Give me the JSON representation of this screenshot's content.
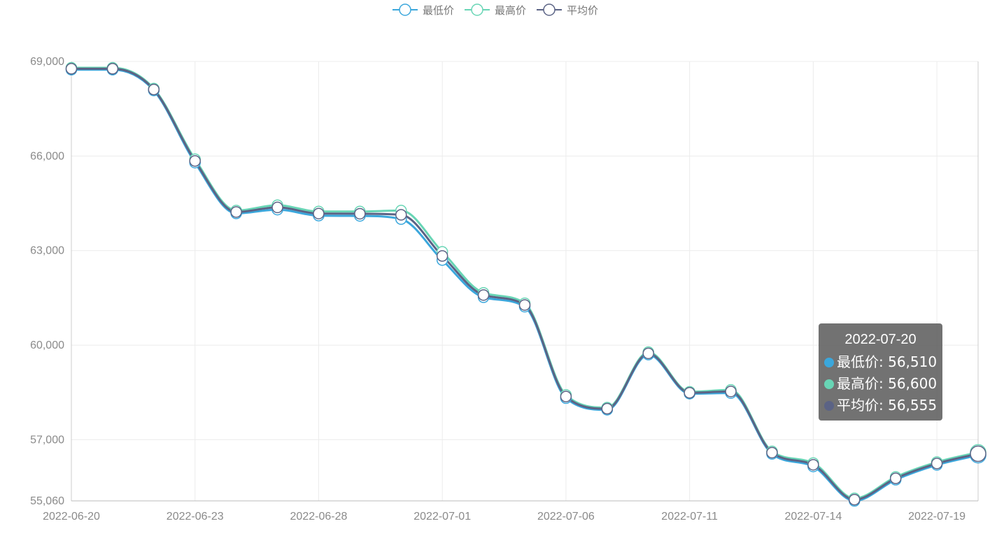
{
  "chart_data": {
    "type": "line",
    "smooth": true,
    "title": "",
    "xlabel": "",
    "ylabel": "",
    "ylim": [
      55060,
      69000
    ],
    "y_ticks": [
      {
        "value": 69000,
        "label": "69,000"
      },
      {
        "value": 66000,
        "label": "66,000"
      },
      {
        "value": 63000,
        "label": "63,000"
      },
      {
        "value": 60000,
        "label": "60,000"
      },
      {
        "value": 57000,
        "label": "57,000"
      },
      {
        "value": 55060,
        "label": "55,060"
      }
    ],
    "x_tick_labels": [
      "2022-06-20",
      "2022-06-23",
      "2022-06-28",
      "2022-07-01",
      "2022-07-06",
      "2022-07-11",
      "2022-07-14",
      "2022-07-19"
    ],
    "grid": true,
    "legend": "top-center",
    "categories": [
      "2022-06-20",
      "2022-06-21",
      "2022-06-22",
      "2022-06-23",
      "2022-06-24",
      "2022-06-27",
      "2022-06-28",
      "2022-06-29",
      "2022-06-30",
      "2022-07-01",
      "2022-07-04",
      "2022-07-05",
      "2022-07-06",
      "2022-07-07",
      "2022-07-08",
      "2022-07-11",
      "2022-07-12",
      "2022-07-13",
      "2022-07-14",
      "2022-07-15",
      "2022-07-18",
      "2022-07-19",
      "2022-07-20"
    ],
    "series": [
      {
        "name": "最低价",
        "color": "#3ba7dc",
        "values": [
          68740,
          68740,
          68080,
          65790,
          64180,
          64300,
          64110,
          64100,
          64000,
          62700,
          61520,
          61220,
          58320,
          57950,
          59700,
          58460,
          58480,
          56550,
          56150,
          55060,
          55730,
          56200,
          56510
        ]
      },
      {
        "name": "最高价",
        "color": "#68d5b5",
        "values": [
          68800,
          68800,
          68140,
          65900,
          64270,
          64440,
          64240,
          64240,
          64270,
          62960,
          61660,
          61330,
          58420,
          58020,
          59780,
          58520,
          58580,
          56630,
          56260,
          55140,
          55820,
          56290,
          56600
        ]
      },
      {
        "name": "平均价",
        "color": "#5b6385",
        "values": [
          68770,
          68770,
          68110,
          65845,
          64225,
          64370,
          64175,
          64170,
          64135,
          62830,
          61590,
          61275,
          58370,
          57985,
          59740,
          58490,
          58530,
          56590,
          56205,
          55100,
          55775,
          56245,
          56555
        ]
      }
    ],
    "tooltip": {
      "title": "2022-07-20",
      "rows": [
        {
          "label": "最低价: 56,510",
          "color": "#3ba7dc"
        },
        {
          "label": "最高价: 56,600",
          "color": "#68d5b5"
        },
        {
          "label": "平均价: 56,555",
          "color": "#5b6385"
        }
      ]
    }
  }
}
